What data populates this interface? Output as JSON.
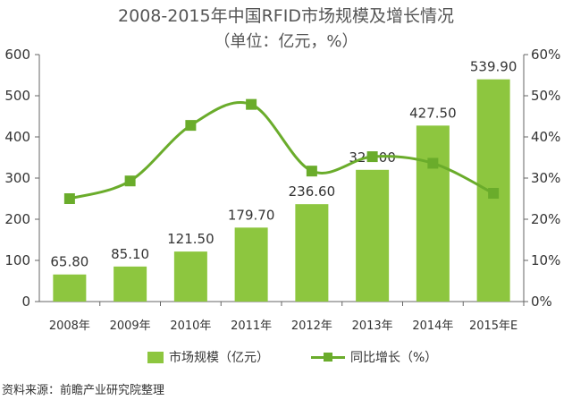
{
  "title": "2008-2015年中国RFID市场规模及增长情况",
  "subtitle": "（单位：亿元，%）",
  "source": "资料来源：前瞻产业研究院整理",
  "colors": {
    "bar": "#8dc63f",
    "line": "#6aac2b",
    "axis": "#666666"
  },
  "chart_data": {
    "type": "bar",
    "categories": [
      "2008年",
      "2009年",
      "2010年",
      "2011年",
      "2012年",
      "2013年",
      "2014年",
      "2015年E"
    ],
    "series": [
      {
        "name": "市场规模（亿元）",
        "type": "bar",
        "axis": "left",
        "values": [
          65.8,
          85.1,
          121.5,
          179.7,
          236.6,
          320.0,
          427.5,
          539.9
        ],
        "labels": [
          "65.80",
          "85.10",
          "121.50",
          "179.70",
          "236.60",
          "320.00",
          "427.50",
          "539.90"
        ]
      },
      {
        "name": "同比增长（%）",
        "type": "line",
        "axis": "right",
        "marker": "square",
        "values": [
          25.0,
          29.3,
          42.8,
          47.9,
          31.7,
          35.2,
          33.6,
          26.3
        ]
      }
    ],
    "y_left": {
      "min": 0,
      "max": 600,
      "ticks": [
        "0",
        "100",
        "200",
        "300",
        "400",
        "500",
        "600"
      ]
    },
    "y_right": {
      "min": 0,
      "max": 60,
      "ticks": [
        "0%",
        "10%",
        "20%",
        "30%",
        "40%",
        "50%",
        "60%"
      ]
    },
    "grid": false,
    "legend_position": "bottom"
  }
}
